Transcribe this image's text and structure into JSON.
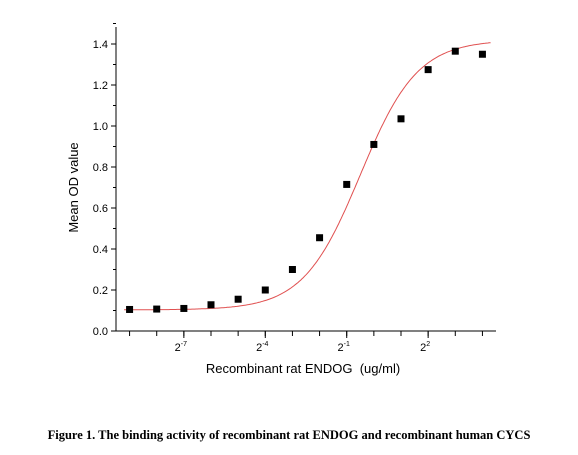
{
  "chart_data": {
    "type": "scatter",
    "xlabel": "Recombinant rat ENDOG  (ug/ml)",
    "ylabel": "Mean OD value",
    "x_scale": "log2",
    "xlim": [
      -9.5,
      4.5
    ],
    "ylim": [
      0,
      1.4
    ],
    "y_ticks": [
      {
        "value": 0.0,
        "label": "0.0"
      },
      {
        "value": 0.2,
        "label": "0.2"
      },
      {
        "value": 0.4,
        "label": "0.4"
      },
      {
        "value": 0.6,
        "label": "0.6"
      },
      {
        "value": 0.8,
        "label": "0.8"
      },
      {
        "value": 1.0,
        "label": "1.0"
      },
      {
        "value": 1.2,
        "label": "1.2"
      },
      {
        "value": 1.4,
        "label": "1.4"
      }
    ],
    "x_ticks": [
      {
        "value": -7,
        "base": "2",
        "exp": "-7"
      },
      {
        "value": -4,
        "base": "2",
        "exp": "-4"
      },
      {
        "value": -1,
        "base": "2",
        "exp": "-1"
      },
      {
        "value": 2,
        "base": "2",
        "exp": "2"
      }
    ],
    "points": [
      {
        "x_log2": -9,
        "y": 0.105
      },
      {
        "x_log2": -8,
        "y": 0.107
      },
      {
        "x_log2": -7,
        "y": 0.11
      },
      {
        "x_log2": -6,
        "y": 0.128
      },
      {
        "x_log2": -5,
        "y": 0.155
      },
      {
        "x_log2": -4,
        "y": 0.2
      },
      {
        "x_log2": -3,
        "y": 0.3
      },
      {
        "x_log2": -2,
        "y": 0.455
      },
      {
        "x_log2": -1,
        "y": 0.715
      },
      {
        "x_log2": 0,
        "y": 0.91
      },
      {
        "x_log2": 1,
        "y": 1.035
      },
      {
        "x_log2": 2,
        "y": 1.275
      },
      {
        "x_log2": 3,
        "y": 1.365
      },
      {
        "x_log2": 4,
        "y": 1.35
      }
    ],
    "fit": {
      "type": "sigmoid",
      "bottom": 0.103,
      "top": 1.42,
      "midpoint_log2": -0.5,
      "slope": 0.95,
      "color": "#e05050"
    },
    "marker_color": "#000000"
  },
  "caption": "Figure 1. The binding activity of recombinant rat ENDOG and recombinant human CYCS"
}
